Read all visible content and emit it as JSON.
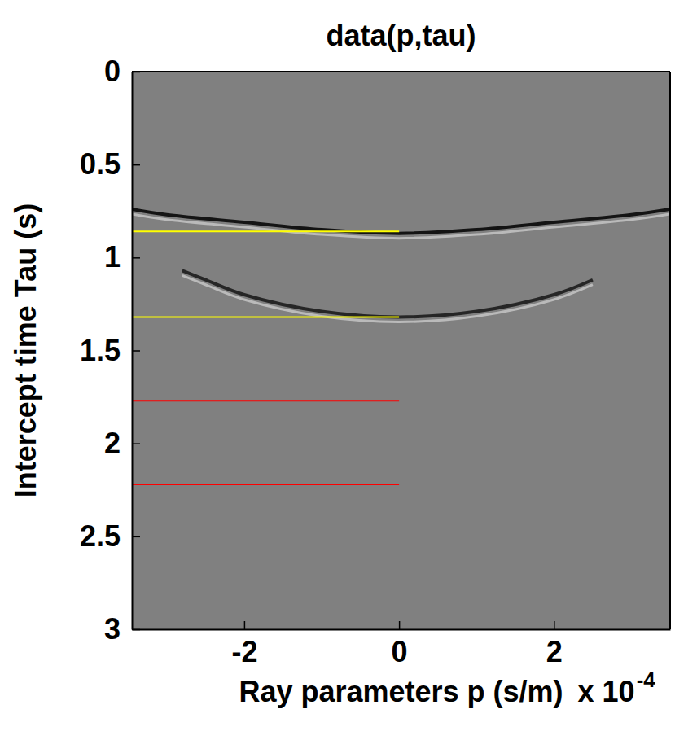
{
  "chart_data": {
    "type": "line",
    "title": "data(p,tau)",
    "x_label": "Ray parameters p (s/m)",
    "y_label": "Intercept time Tau (s)",
    "axis_multiplier": "x 10",
    "axis_multiplier_exponent": "-4",
    "xlim": [
      -3.45,
      3.5
    ],
    "ylim": [
      0,
      3
    ],
    "xticks": [
      -2,
      0,
      2
    ],
    "yticks": [
      0,
      0.5,
      1,
      1.5,
      2,
      2.5,
      3
    ],
    "grid": false,
    "series": [
      {
        "type": "line",
        "color": "#141414",
        "line_style": "solid",
        "x": [
          -3.45,
          -3,
          -2,
          -1,
          0,
          1,
          2,
          3,
          3.5
        ],
        "values": [
          0.74,
          0.77,
          0.81,
          0.85,
          0.87,
          0.85,
          0.81,
          0.77,
          0.74
        ]
      },
      {
        "type": "line",
        "color": "#262626",
        "line_style": "solid",
        "x": [
          -2.8,
          -2.5,
          -2,
          -1,
          0,
          1,
          2,
          2.5
        ],
        "values": [
          1.07,
          1.12,
          1.2,
          1.29,
          1.32,
          1.29,
          1.2,
          1.12
        ]
      },
      {
        "type": "line",
        "color": "#ffff00",
        "line_style": "solid",
        "x": [
          -3.45,
          0
        ],
        "values": [
          0.86,
          0.86
        ]
      },
      {
        "type": "line",
        "color": "#ffff00",
        "line_style": "solid",
        "x": [
          -3.45,
          0
        ],
        "values": [
          1.32,
          1.32
        ]
      },
      {
        "type": "line",
        "color": "#ff0000",
        "line_style": "solid",
        "x": [
          -3.45,
          0
        ],
        "values": [
          1.77,
          1.77
        ]
      },
      {
        "type": "line",
        "color": "#ff0000",
        "line_style": "solid",
        "x": [
          -3.45,
          0
        ],
        "values": [
          2.22,
          2.22
        ]
      }
    ]
  }
}
